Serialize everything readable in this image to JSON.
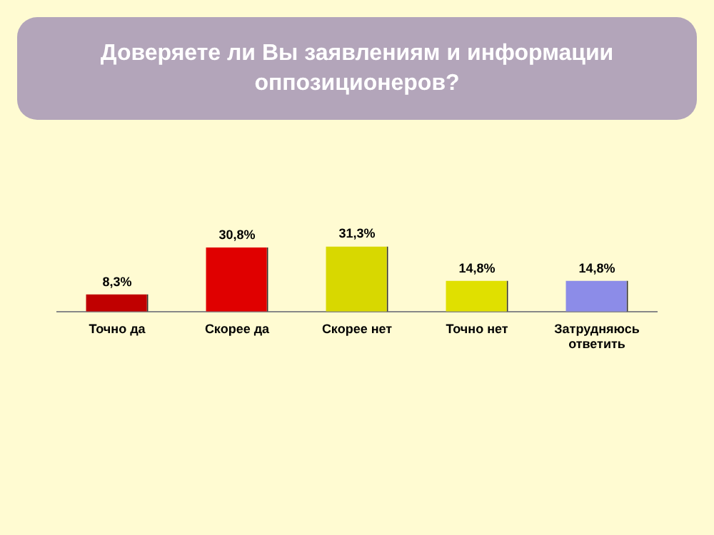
{
  "chart_data": {
    "type": "bar",
    "title": "Доверяете ли Вы заявлениям и информации оппозиционеров?",
    "categories": [
      "Точно да",
      "Скорее да",
      "Скорее нет",
      "Точно нет",
      "Затрудняюсь ответить"
    ],
    "values": [
      8.3,
      30.8,
      31.3,
      14.8,
      14.8
    ],
    "colors": [
      "#c00000",
      "#e00000",
      "#d8d800",
      "#e0e000",
      "#8c8ce8"
    ],
    "value_labels": [
      "8,3%",
      "30,8%",
      "31,3%",
      "14,8%",
      "14,8%"
    ],
    "grid": false,
    "legend": false
  }
}
